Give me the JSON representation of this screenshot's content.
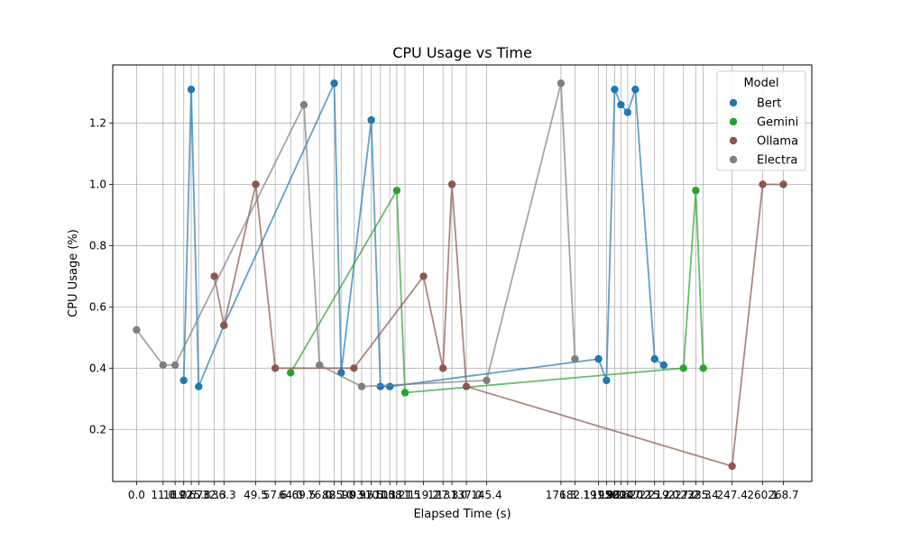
{
  "chart_data": {
    "type": "scatter",
    "title": "CPU Usage vs Time",
    "xlabel": "Elapsed Time (s)",
    "ylabel": "CPU Usage (%)",
    "xlim": [
      -9.9,
      280.5
    ],
    "ylim": [
      0.03,
      1.39
    ],
    "yticks": [
      0.2,
      0.4,
      0.6,
      0.8,
      1.0,
      1.2
    ],
    "ytick_labels": [
      "0.2",
      "0.4",
      "0.6",
      "0.8",
      "1.0",
      "1.2"
    ],
    "xticks": [
      0.0,
      11.0,
      16.0,
      19.6,
      22.7,
      25.8,
      32.3,
      36.3,
      49.5,
      57.6,
      64.0,
      69.5,
      76.0,
      82.1,
      85.0,
      90.3,
      93.5,
      97.5,
      101.3,
      105.2,
      108.1,
      111.5,
      119.2,
      127.3,
      131.0,
      137.0,
      145.4,
      176.3,
      182.1,
      191.9,
      195.2,
      198.6,
      201.2,
      204.0,
      207.2,
      215.2,
      219.0,
      227.2,
      232.3,
      235.4,
      247.4,
      260.1,
      268.7
    ],
    "xtick_labels": [
      "0.0",
      "11.0",
      "16.0",
      "19.6",
      "22.7",
      "25.8",
      "32.3",
      "36.3",
      "49.5",
      "57.6",
      "64.0",
      "69.5",
      "76.0",
      "82.1",
      "85.0",
      "90.3",
      "93.5",
      "97.5",
      "101.3",
      "105.2",
      "108.1",
      "111.5",
      "119.2",
      "127.3",
      "131.0",
      "137.0",
      "145.4",
      "176.3",
      "182.1",
      "191.9",
      "195.2",
      "198.6",
      "201.2",
      "204.0",
      "207.2",
      "215.2",
      "219.0",
      "227.2",
      "232.3",
      "235.4",
      "247.4",
      "260.1",
      "268.7"
    ],
    "grid": true,
    "legend": {
      "title": "Model",
      "placement": "top-right"
    },
    "series": [
      {
        "name": "Bert",
        "color": "#1f77b4",
        "x": [
          19.6,
          22.7,
          25.8,
          36.3,
          82.1,
          85.0,
          97.5,
          101.3,
          105.2,
          191.9,
          195.2,
          198.6,
          201.2,
          204.0,
          207.2,
          215.2,
          219.0
        ],
        "y": [
          0.36,
          1.31,
          0.34,
          0.54,
          1.33,
          0.385,
          1.21,
          0.34,
          0.34,
          0.43,
          0.36,
          1.31,
          1.26,
          1.235,
          1.31,
          0.43,
          0.41
        ]
      },
      {
        "name": "Gemini",
        "color": "#2ca02c",
        "x": [
          64.0,
          108.1,
          111.5,
          227.2,
          232.3,
          235.4
        ],
        "y": [
          0.385,
          0.98,
          0.32,
          0.4,
          0.98,
          0.4
        ]
      },
      {
        "name": "Ollama",
        "color": "#8c564b",
        "x": [
          32.3,
          36.3,
          49.5,
          57.6,
          90.3,
          119.2,
          127.3,
          131.0,
          137.0,
          247.4,
          260.1,
          268.7
        ],
        "y": [
          0.7,
          0.54,
          1.0,
          0.4,
          0.4,
          0.7,
          0.4,
          1.0,
          0.34,
          0.08,
          1.0,
          1.0
        ]
      },
      {
        "name": "Electra",
        "color": "#7f7f7f",
        "x": [
          0.0,
          11.0,
          16.0,
          69.5,
          76.0,
          93.5,
          145.4,
          176.3,
          182.1
        ],
        "y": [
          0.525,
          0.41,
          0.41,
          1.26,
          0.41,
          0.34,
          0.36,
          1.33,
          0.43
        ]
      }
    ]
  }
}
